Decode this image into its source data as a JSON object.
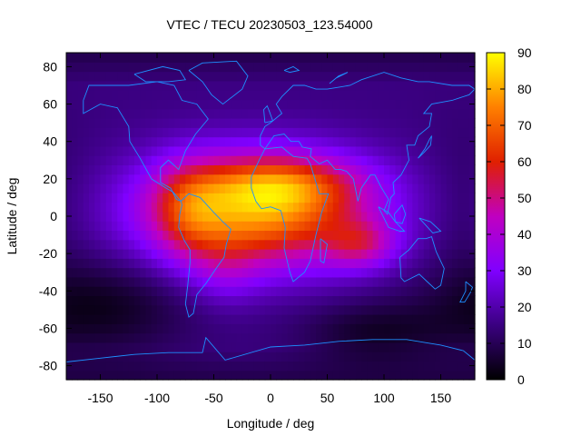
{
  "chart_data": {
    "type": "heatmap",
    "title": "VTEC / TECU 20230503_123.54000",
    "xlabel": "Longitude / deg",
    "ylabel": "Latitude / deg",
    "xlim": [
      -180,
      180
    ],
    "ylim": [
      -87.5,
      87.5
    ],
    "xticks": [
      -150,
      -100,
      -50,
      0,
      50,
      100,
      150
    ],
    "xtick_labels": [
      "-150",
      "-100",
      "-50",
      "0",
      "50",
      "100",
      "150"
    ],
    "yticks": [
      -80,
      -60,
      -40,
      -20,
      0,
      20,
      40,
      60,
      80
    ],
    "ytick_labels": [
      "-80",
      "-60",
      "-40",
      "-20",
      "0",
      "20",
      "40",
      "60",
      "80"
    ],
    "colorbar": {
      "min": 0,
      "max": 90,
      "ticks": [
        0,
        10,
        20,
        30,
        40,
        50,
        60,
        70,
        80,
        90
      ],
      "tick_labels": [
        "0",
        "10",
        "20",
        "30",
        "40",
        "50",
        "60",
        "70",
        "80",
        "90"
      ],
      "palette": [
        "#000000",
        "#3a0080",
        "#8000ff",
        "#c000c0",
        "#e02000",
        "#ff8000",
        "#ffff00"
      ]
    },
    "grid_step_deg": 5,
    "background_level": 15,
    "features": [
      {
        "name": "main-peak",
        "lon": -10,
        "lat": 3,
        "amp": 62,
        "sx": 70,
        "sy": 21
      },
      {
        "name": "northern-crest",
        "lon": 10,
        "lat": 18,
        "amp": 22,
        "sx": 48,
        "sy": 10
      },
      {
        "name": "american-lobe",
        "lon": -72,
        "lat": 4,
        "amp": 18,
        "sx": 22,
        "sy": 18
      },
      {
        "name": "indian-ocean-tail",
        "lon": 80,
        "lat": -15,
        "amp": 22,
        "sx": 22,
        "sy": 9
      },
      {
        "name": "south-atlantic-extension",
        "lon": -40,
        "lat": -28,
        "amp": 10,
        "sx": 22,
        "sy": 14
      },
      {
        "name": "pacific-trough",
        "lon": -150,
        "lat": -48,
        "amp": -12,
        "sx": 55,
        "sy": 18
      },
      {
        "name": "indian-south-trough",
        "lon": 90,
        "lat": -62,
        "amp": -10,
        "sx": 45,
        "sy": 12
      },
      {
        "name": "far-pacific-low",
        "lon": 170,
        "lat": 5,
        "amp": -3,
        "sx": 25,
        "sy": 35
      }
    ],
    "coastline_color": "#1e90ff",
    "coastlines": [
      {
        "name": "north-america",
        "points": [
          [
            -165,
            62
          ],
          [
            -160,
            70
          ],
          [
            -140,
            70
          ],
          [
            -125,
            70
          ],
          [
            -100,
            72
          ],
          [
            -85,
            70
          ],
          [
            -78,
            62
          ],
          [
            -65,
            60
          ],
          [
            -55,
            52
          ],
          [
            -66,
            44
          ],
          [
            -75,
            35
          ],
          [
            -81,
            25
          ],
          [
            -90,
            30
          ],
          [
            -97,
            26
          ],
          [
            -97,
            18
          ],
          [
            -88,
            15
          ],
          [
            -83,
            9
          ],
          [
            -79,
            8
          ],
          [
            -86,
            13
          ],
          [
            -92,
            15
          ],
          [
            -105,
            20
          ],
          [
            -115,
            31
          ],
          [
            -124,
            40
          ],
          [
            -125,
            48
          ],
          [
            -135,
            58
          ],
          [
            -150,
            60
          ],
          [
            -165,
            55
          ],
          [
            -165,
            62
          ]
        ]
      },
      {
        "name": "south-america",
        "points": [
          [
            -79,
            8
          ],
          [
            -72,
            12
          ],
          [
            -62,
            10
          ],
          [
            -50,
            2
          ],
          [
            -42,
            -3
          ],
          [
            -35,
            -7
          ],
          [
            -39,
            -15
          ],
          [
            -41,
            -22
          ],
          [
            -48,
            -28
          ],
          [
            -57,
            -36
          ],
          [
            -65,
            -42
          ],
          [
            -68,
            -52
          ],
          [
            -72,
            -54
          ],
          [
            -75,
            -47
          ],
          [
            -73,
            -37
          ],
          [
            -71,
            -25
          ],
          [
            -71,
            -18
          ],
          [
            -76,
            -13
          ],
          [
            -81,
            -6
          ],
          [
            -80,
            1
          ],
          [
            -78,
            6
          ],
          [
            -79,
            8
          ]
        ]
      },
      {
        "name": "greenland",
        "points": [
          [
            -72,
            78
          ],
          [
            -60,
            82
          ],
          [
            -30,
            83
          ],
          [
            -20,
            75
          ],
          [
            -25,
            68
          ],
          [
            -42,
            60
          ],
          [
            -52,
            65
          ],
          [
            -60,
            72
          ],
          [
            -72,
            78
          ]
        ]
      },
      {
        "name": "africa",
        "points": [
          [
            -17,
            21
          ],
          [
            -10,
            30
          ],
          [
            -5,
            36
          ],
          [
            10,
            37
          ],
          [
            20,
            32
          ],
          [
            32,
            31
          ],
          [
            35,
            28
          ],
          [
            43,
            12
          ],
          [
            51,
            12
          ],
          [
            45,
            2
          ],
          [
            40,
            -10
          ],
          [
            35,
            -24
          ],
          [
            30,
            -30
          ],
          [
            20,
            -35
          ],
          [
            17,
            -30
          ],
          [
            12,
            -17
          ],
          [
            13,
            -6
          ],
          [
            9,
            3
          ],
          [
            0,
            5
          ],
          [
            -8,
            4
          ],
          [
            -13,
            8
          ],
          [
            -17,
            15
          ],
          [
            -17,
            21
          ]
        ]
      },
      {
        "name": "eurasia",
        "points": [
          [
            -9,
            43
          ],
          [
            -9,
            38
          ],
          [
            -5,
            36
          ],
          [
            3,
            43
          ],
          [
            12,
            44
          ],
          [
            18,
            40
          ],
          [
            25,
            40
          ],
          [
            28,
            37
          ],
          [
            36,
            36
          ],
          [
            35,
            32
          ],
          [
            43,
            28
          ],
          [
            50,
            30
          ],
          [
            57,
            25
          ],
          [
            62,
            25
          ],
          [
            67,
            24
          ],
          [
            73,
            20
          ],
          [
            77,
            8
          ],
          [
            80,
            15
          ],
          [
            88,
            22
          ],
          [
            92,
            22
          ],
          [
            97,
            16
          ],
          [
            100,
            13
          ],
          [
            104,
            9
          ],
          [
            100,
            3
          ],
          [
            103,
            1
          ],
          [
            106,
            10
          ],
          [
            109,
            12
          ],
          [
            108,
            18
          ],
          [
            115,
            22
          ],
          [
            122,
            30
          ],
          [
            120,
            38
          ],
          [
            127,
            38
          ],
          [
            130,
            43
          ],
          [
            140,
            48
          ],
          [
            142,
            55
          ],
          [
            135,
            55
          ],
          [
            142,
            60
          ],
          [
            160,
            62
          ],
          [
            175,
            65
          ],
          [
            180,
            68
          ],
          [
            175,
            70
          ],
          [
            160,
            70
          ],
          [
            140,
            72
          ],
          [
            130,
            72
          ],
          [
            115,
            74
          ],
          [
            100,
            77
          ],
          [
            80,
            73
          ],
          [
            70,
            70
          ],
          [
            60,
            69
          ],
          [
            50,
            68
          ],
          [
            40,
            68
          ],
          [
            30,
            70
          ],
          [
            20,
            70
          ],
          [
            10,
            64
          ],
          [
            5,
            60
          ],
          [
            10,
            55
          ],
          [
            8,
            54
          ],
          [
            0,
            50
          ],
          [
            -5,
            48
          ],
          [
            -9,
            43
          ]
        ]
      },
      {
        "name": "australia",
        "points": [
          [
            114,
            -22
          ],
          [
            122,
            -18
          ],
          [
            130,
            -12
          ],
          [
            137,
            -12
          ],
          [
            142,
            -11
          ],
          [
            146,
            -19
          ],
          [
            153,
            -28
          ],
          [
            150,
            -37
          ],
          [
            145,
            -39
          ],
          [
            138,
            -35
          ],
          [
            131,
            -31
          ],
          [
            118,
            -35
          ],
          [
            115,
            -33
          ],
          [
            114,
            -22
          ]
        ]
      },
      {
        "name": "antarctica",
        "points": [
          [
            -180,
            -78
          ],
          [
            -150,
            -76
          ],
          [
            -120,
            -74
          ],
          [
            -90,
            -73
          ],
          [
            -60,
            -73
          ],
          [
            -57,
            -65
          ],
          [
            -40,
            -77
          ],
          [
            0,
            -70
          ],
          [
            30,
            -69
          ],
          [
            60,
            -67
          ],
          [
            90,
            -66
          ],
          [
            120,
            -66
          ],
          [
            150,
            -69
          ],
          [
            170,
            -72
          ],
          [
            180,
            -77
          ]
        ]
      },
      {
        "name": "madagascar",
        "points": [
          [
            44,
            -12
          ],
          [
            50,
            -15
          ],
          [
            47,
            -25
          ],
          [
            44,
            -24
          ],
          [
            44,
            -12
          ]
        ]
      },
      {
        "name": "great-britain",
        "points": [
          [
            -5,
            50
          ],
          [
            2,
            51
          ],
          [
            -1,
            56
          ],
          [
            -3,
            59
          ],
          [
            -6,
            57
          ],
          [
            -5,
            50
          ]
        ]
      },
      {
        "name": "japan",
        "points": [
          [
            130,
            31
          ],
          [
            135,
            34
          ],
          [
            141,
            38
          ],
          [
            142,
            43
          ],
          [
            140,
            41
          ],
          [
            136,
            36
          ],
          [
            130,
            31
          ]
        ]
      },
      {
        "name": "new-zealand",
        "points": [
          [
            172,
            -35
          ],
          [
            178,
            -38
          ],
          [
            176,
            -41
          ],
          [
            171,
            -46
          ],
          [
            167,
            -46
          ],
          [
            172,
            -40
          ],
          [
            172,
            -35
          ]
        ]
      },
      {
        "name": "indonesia",
        "points": [
          [
            95,
            5
          ],
          [
            104,
            -6
          ],
          [
            114,
            -8
          ],
          [
            118,
            -8
          ],
          [
            110,
            -3
          ],
          [
            104,
            2
          ],
          [
            95,
            5
          ]
        ]
      },
      {
        "name": "borneo",
        "points": [
          [
            109,
            1
          ],
          [
            116,
            6
          ],
          [
            119,
            1
          ],
          [
            116,
            -4
          ],
          [
            110,
            -3
          ],
          [
            109,
            1
          ]
        ]
      },
      {
        "name": "new-guinea",
        "points": [
          [
            131,
            -1
          ],
          [
            141,
            -3
          ],
          [
            150,
            -8
          ],
          [
            143,
            -9
          ],
          [
            131,
            -1
          ]
        ]
      },
      {
        "name": "arctic-islands",
        "points": [
          [
            -120,
            76
          ],
          [
            -95,
            80
          ],
          [
            -80,
            78
          ],
          [
            -75,
            73
          ],
          [
            -90,
            72
          ],
          [
            -110,
            72
          ],
          [
            -120,
            76
          ]
        ]
      },
      {
        "name": "svalbard",
        "points": [
          [
            12,
            78
          ],
          [
            20,
            80
          ],
          [
            25,
            78
          ],
          [
            17,
            77
          ],
          [
            12,
            78
          ]
        ]
      },
      {
        "name": "novaya-zemlya",
        "points": [
          [
            52,
            71
          ],
          [
            60,
            75
          ],
          [
            68,
            77
          ],
          [
            58,
            74
          ],
          [
            52,
            71
          ]
        ]
      }
    ]
  }
}
